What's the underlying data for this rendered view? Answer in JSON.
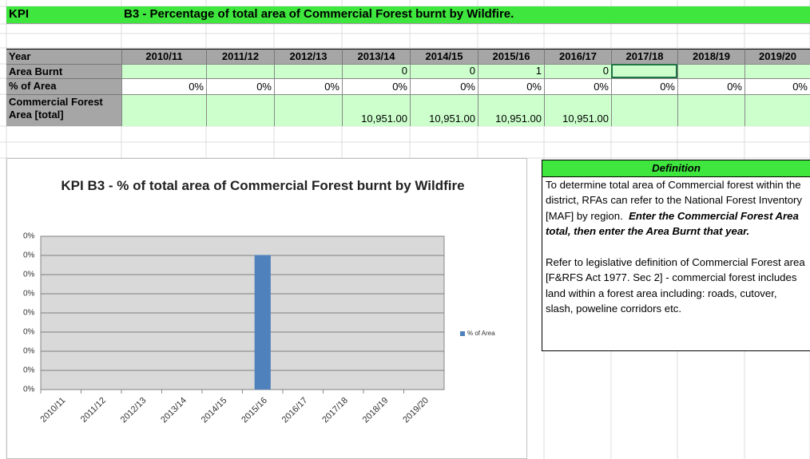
{
  "sheet": {
    "kpi_label": "KPI",
    "kpi_title": "B3 - Percentage of total area of Commercial Forest burnt by Wildfire.",
    "header": {
      "label": "Year",
      "columns": [
        "2010/11",
        "2011/12",
        "2012/13",
        "2013/14",
        "2014/15",
        "2015/16",
        "2016/17",
        "2017/18",
        "2018/19",
        "2019/20"
      ]
    },
    "rows": [
      {
        "label": "Area Burnt",
        "cells": [
          null,
          null,
          null,
          0,
          0,
          1,
          0,
          null,
          null,
          null
        ]
      },
      {
        "label": "% of Area",
        "cells": [
          "0%",
          "0%",
          "0%",
          "0%",
          "0%",
          "0%",
          "0%",
          "0%",
          "0%",
          "0%"
        ]
      },
      {
        "label": "Commercial Forest Area [total]",
        "cells": [
          null,
          null,
          null,
          "10,951.00",
          "10,951.00",
          "10,951.00",
          "10,951.00",
          null,
          null,
          null
        ]
      }
    ]
  },
  "definition": {
    "title": "Definition",
    "paragraphs": [
      {
        "text": "To determine total area of Commercial forest within the district, RFAs can refer to the National Forest Inventory [MAF] by region.",
        "emphasis": "Enter the Commercial Forest Area total, then enter the Area Burnt that year."
      },
      {
        "text": "Refer to legislative definition of Commercial Forest area [F&RFS Act 1977. Sec 2] - commercial forest includes land within a forest area including: roads, cutover, slash, poweline corridors etc."
      }
    ]
  },
  "chart_data": {
    "type": "bar",
    "title": "KPI B3 - % of total area of Commercial Forest burnt by Wildfire",
    "categories": [
      "2010/11",
      "2011/12",
      "2012/13",
      "2013/14",
      "2014/15",
      "2015/16",
      "2016/17",
      "2017/18",
      "2018/19",
      "2019/20"
    ],
    "series": [
      {
        "name": "% of Area",
        "color": "#4f81bd",
        "values": [
          0,
          0,
          0,
          0,
          0,
          0.00913,
          0,
          0,
          0,
          0
        ]
      }
    ],
    "ylim": [
      0,
      0.0104
    ],
    "yticks": [
      {
        "value": 0,
        "label": "0%"
      },
      {
        "value": 0.0013,
        "label": "0%"
      },
      {
        "value": 0.0026,
        "label": "0%"
      },
      {
        "value": 0.0039,
        "label": "0%"
      },
      {
        "value": 0.0052,
        "label": "0%"
      },
      {
        "value": 0.0065,
        "label": "0%"
      },
      {
        "value": 0.0078,
        "label": "0%"
      },
      {
        "value": 0.0091,
        "label": "0%"
      },
      {
        "value": 0.0104,
        "label": "0%"
      }
    ],
    "grid": true,
    "legend": "right"
  }
}
